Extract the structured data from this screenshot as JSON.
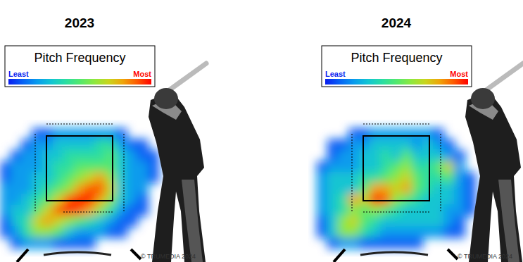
{
  "chart_data": [
    {
      "type": "heatmap",
      "title": "2023",
      "colorbar": {
        "title": "Pitch Frequency",
        "range": [
          0,
          10
        ],
        "ticks": [
          {
            "value": 0,
            "label": "Least"
          },
          {
            "value": 10,
            "label": "Most"
          }
        ]
      },
      "annotations": [
        "© TRUMEDIA 2024"
      ],
      "cells": [
        [
          0,
          0,
          0,
          1,
          1,
          2,
          2,
          2,
          2,
          2,
          2,
          1,
          0,
          0,
          0
        ],
        [
          0,
          0,
          1,
          2,
          2,
          3,
          3,
          3,
          3,
          4,
          4,
          2,
          1,
          1,
          0
        ],
        [
          0,
          1,
          2,
          2,
          3,
          3,
          4,
          4,
          4,
          4,
          5,
          3,
          2,
          1,
          1
        ],
        [
          1,
          2,
          2,
          2,
          3,
          4,
          4,
          5,
          5,
          5,
          5,
          3,
          2,
          2,
          1
        ],
        [
          1,
          2,
          2,
          3,
          3,
          4,
          5,
          6,
          7,
          8,
          6,
          3,
          2,
          2,
          1
        ],
        [
          2,
          2,
          2,
          3,
          4,
          5,
          6,
          8,
          9,
          9,
          7,
          3,
          2,
          2,
          0
        ],
        [
          2,
          2,
          3,
          4,
          5,
          7,
          9,
          10,
          10,
          8,
          6,
          3,
          2,
          1,
          0
        ],
        [
          2,
          3,
          3,
          5,
          7,
          9,
          10,
          9,
          8,
          6,
          4,
          2,
          1,
          1,
          0
        ],
        [
          1,
          3,
          4,
          7,
          8,
          7,
          6,
          5,
          4,
          3,
          2,
          1,
          1,
          0,
          0
        ],
        [
          1,
          2,
          4,
          6,
          6,
          5,
          3,
          2,
          2,
          2,
          1,
          1,
          0,
          0,
          0
        ],
        [
          0,
          1,
          2,
          2,
          2,
          1,
          1,
          1,
          1,
          0,
          0,
          0,
          0,
          0,
          0
        ]
      ]
    },
    {
      "type": "heatmap",
      "title": "2024",
      "colorbar": {
        "title": "Pitch Frequency",
        "range": [
          0,
          10
        ],
        "ticks": [
          {
            "value": 0,
            "label": "Least"
          },
          {
            "value": 10,
            "label": "Most"
          }
        ]
      },
      "annotations": [
        "© TRUMEDIA 2024"
      ],
      "cells": [
        [
          0,
          0,
          0,
          1,
          1,
          2,
          2,
          2,
          2,
          2,
          2,
          1,
          0,
          0,
          0
        ],
        [
          0,
          1,
          1,
          2,
          2,
          3,
          3,
          3,
          3,
          2,
          3,
          2,
          1,
          0,
          0
        ],
        [
          0,
          1,
          2,
          2,
          3,
          3,
          4,
          3,
          5,
          3,
          3,
          3,
          2,
          1,
          0
        ],
        [
          1,
          2,
          2,
          2,
          3,
          3,
          4,
          5,
          6,
          4,
          4,
          5,
          7,
          2,
          0
        ],
        [
          2,
          3,
          3,
          3,
          4,
          4,
          5,
          6,
          7,
          5,
          4,
          4,
          5,
          2,
          1
        ],
        [
          2,
          3,
          3,
          3,
          5,
          8,
          8,
          7,
          8,
          5,
          4,
          3,
          3,
          2,
          1
        ],
        [
          2,
          3,
          4,
          8,
          7,
          10,
          9,
          6,
          5,
          4,
          3,
          3,
          3,
          2,
          1
        ],
        [
          2,
          3,
          4,
          6,
          5,
          6,
          5,
          4,
          3,
          3,
          3,
          3,
          2,
          2,
          1
        ],
        [
          1,
          3,
          6,
          7,
          5,
          4,
          3,
          3,
          3,
          3,
          3,
          3,
          2,
          1,
          0
        ],
        [
          1,
          3,
          6,
          6,
          4,
          3,
          2,
          2,
          2,
          2,
          2,
          2,
          1,
          1,
          0
        ],
        [
          0,
          1,
          2,
          2,
          1,
          1,
          1,
          1,
          1,
          1,
          0,
          0,
          0,
          0,
          0
        ]
      ]
    }
  ]
}
